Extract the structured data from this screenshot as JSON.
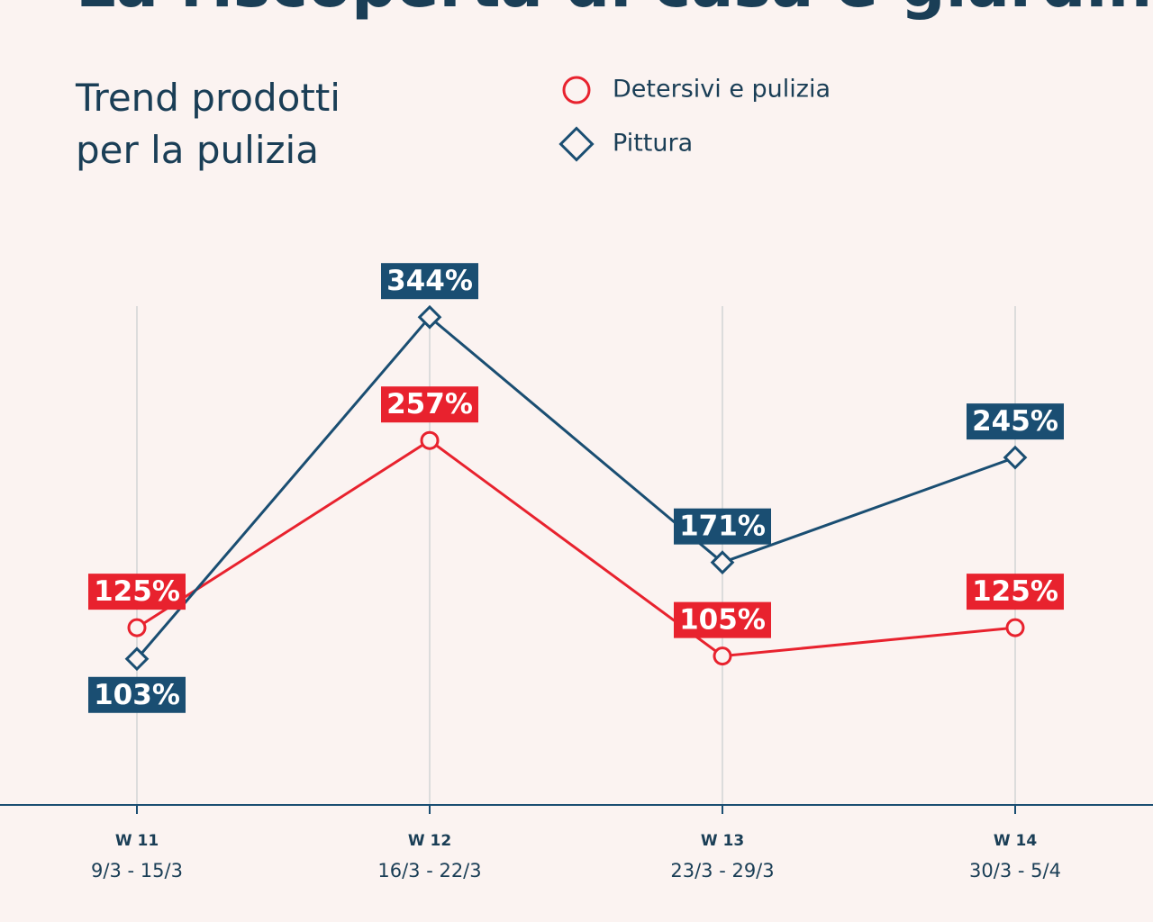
{
  "chart_data": {
    "type": "line",
    "title": "La riscoperta di casa e giardini",
    "subtitle": "Trend prodotti per la pulizia",
    "categories": [
      "W 11",
      "W 12",
      "W 13",
      "W 14"
    ],
    "category_dates": [
      "9/3 - 15/3",
      "16/3 - 22/3",
      "23/3 - 29/3",
      "30/3 - 5/4"
    ],
    "series": [
      {
        "name": "Detersivi e pulizia",
        "color": "#e8222e",
        "marker": "circle",
        "values": [
          125,
          257,
          105,
          125
        ],
        "value_labels": [
          "125%",
          "257%",
          "105%",
          "125%"
        ]
      },
      {
        "name": "Pittura",
        "color": "#1a4e72",
        "marker": "diamond",
        "values": [
          103,
          344,
          171,
          245
        ],
        "value_labels": [
          "103%",
          "344%",
          "171%",
          "245%"
        ]
      }
    ]
  }
}
